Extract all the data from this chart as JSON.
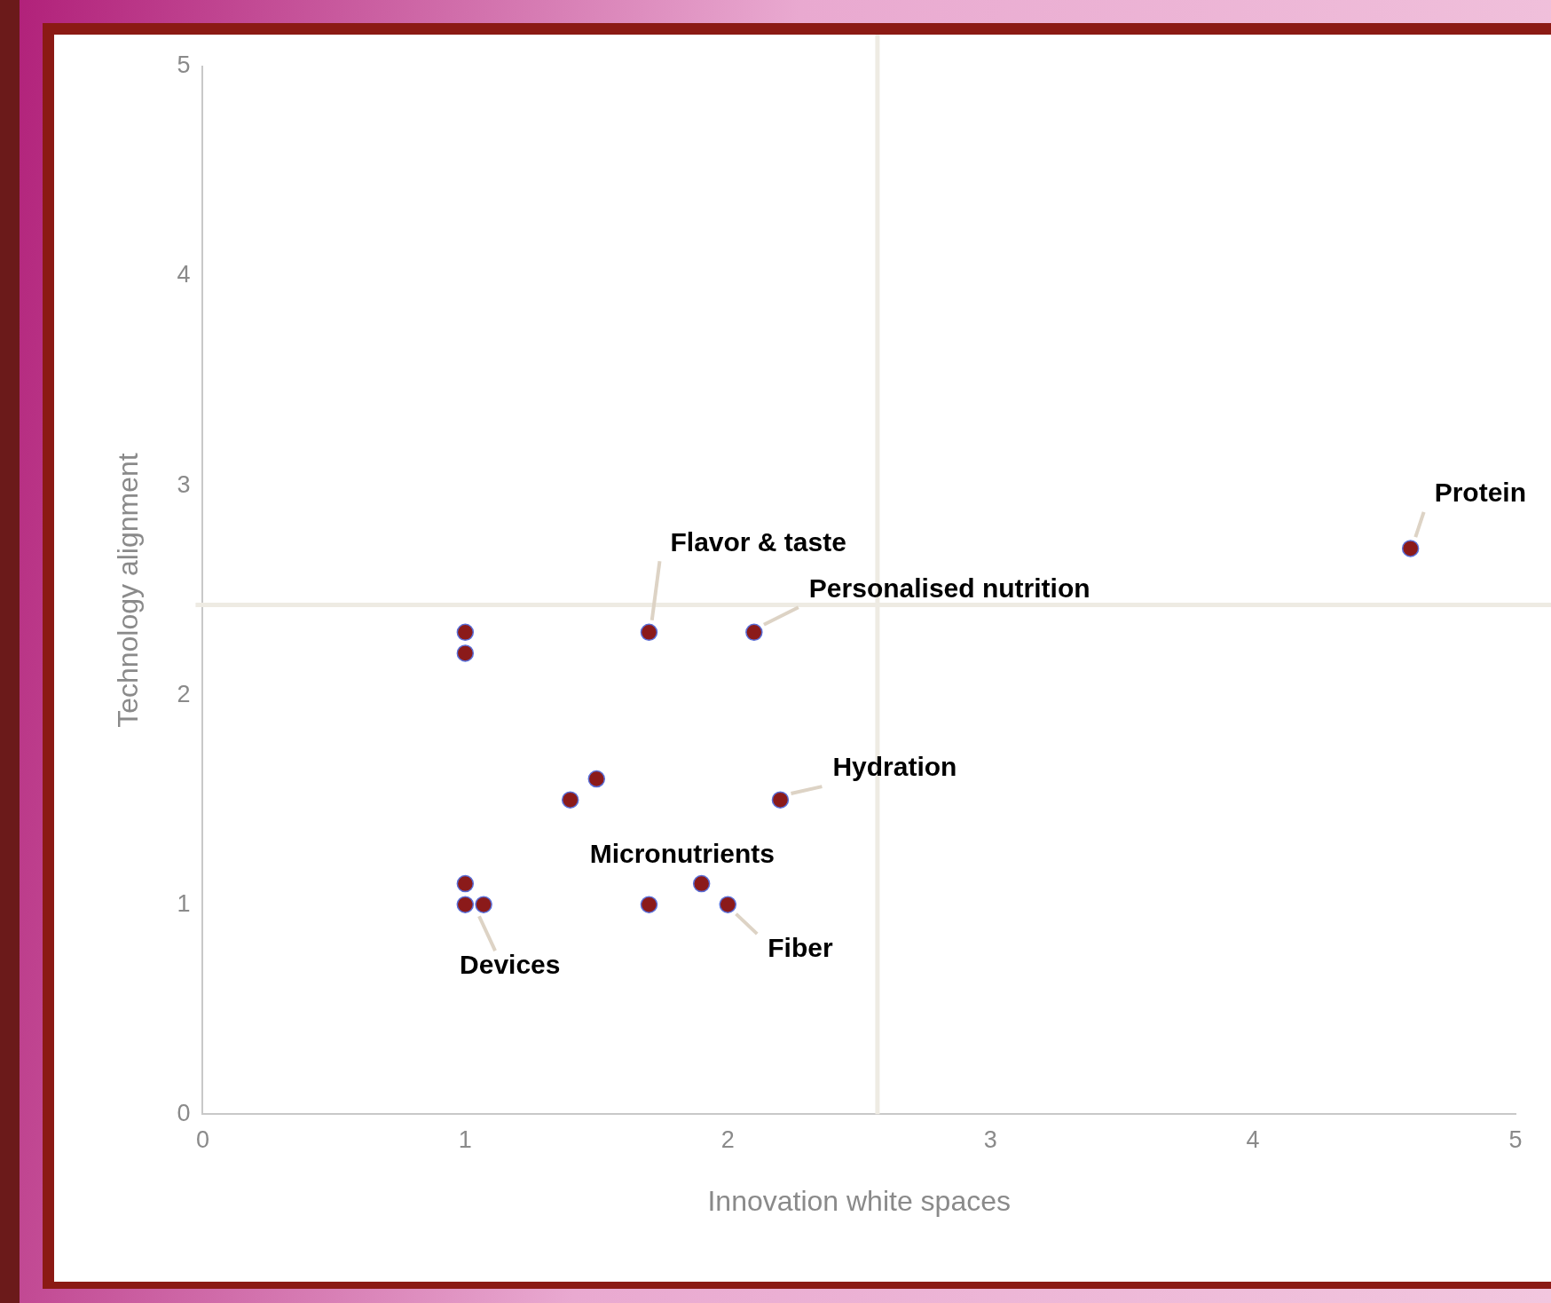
{
  "chart_data": {
    "type": "scatter",
    "xlabel": "Innovation white spaces",
    "ylabel": "Technology alignment",
    "x": [
      1,
      1,
      1.7,
      2.1,
      4.6,
      1.4,
      1.5,
      2.2,
      1,
      1,
      1.07,
      1.7,
      1.9,
      2
    ],
    "series": [
      {
        "color": "#8b1a1a",
        "values": [
          2.3,
          2.2,
          2.3,
          2.3,
          2.7,
          1.5,
          1.6,
          1.5,
          1.1,
          1,
          1,
          1,
          1.1,
          1
        ]
      }
    ],
    "xlim": [
      0,
      5
    ],
    "xticks": [
      0,
      1,
      2,
      3,
      4,
      5
    ],
    "ylim": [
      0,
      5
    ],
    "yticks": [
      0,
      1,
      2,
      3,
      4,
      5
    ],
    "grid": false,
    "legend": false,
    "marker": "circle",
    "ref_lines": [
      {
        "axis": "x",
        "value": 2.57,
        "color": "#eeebe3"
      },
      {
        "axis": "y",
        "value": 2.43,
        "color": "#eeebe3"
      }
    ],
    "annotations": [
      {
        "text": "Flavor & taste",
        "x": 1.7,
        "y": 2.3
      },
      {
        "text": "Personalised nutrition",
        "x": 2.1,
        "y": 2.3
      },
      {
        "text": "Protein",
        "x": 4.6,
        "y": 2.7
      },
      {
        "text": "Hydration",
        "x": 2.2,
        "y": 1.5
      },
      {
        "text": "Micronutrients",
        "x": 1.9,
        "y": 1.1
      },
      {
        "text": "Fiber",
        "x": 2,
        "y": 1
      },
      {
        "text": "Devices",
        "x": 1.07,
        "y": 1
      }
    ]
  }
}
